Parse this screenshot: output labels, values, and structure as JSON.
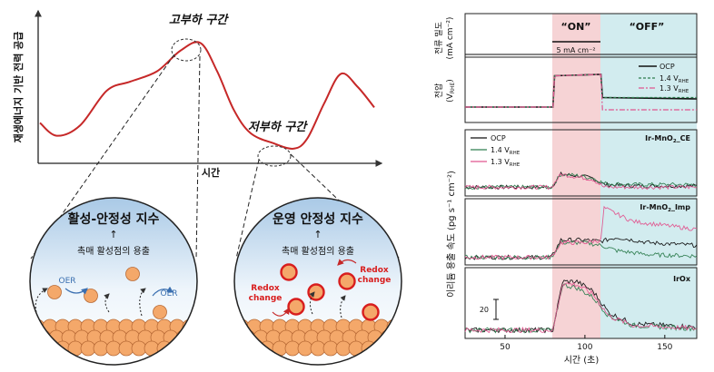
{
  "left_figure": {
    "y_axis_label": "재생에너지 기반 전력 공급",
    "x_axis_label": "시간",
    "high_load_label": "고부하 구간",
    "low_load_label": "저부하 구간",
    "circle_left": {
      "title": "활성-안정성 지수",
      "arrow": "↑",
      "subtitle": "촉매 활성점의 용출",
      "oer_labels": [
        "OER",
        "OER"
      ]
    },
    "circle_right": {
      "title": "운영 안정성 지수",
      "arrow": "↑",
      "subtitle": "촉매 활성점의 용출",
      "redox_labels": [
        "Redox\nchange",
        "Redox\nchange"
      ]
    },
    "colors": {
      "curve": "#c62828",
      "circle_top": "#a9c9e6",
      "particle": "#f4a86a",
      "redox": "#d81e1e"
    }
  },
  "right_figure": {
    "x_axis_label": "시간 (초)",
    "x_ticks": [
      "50",
      "100",
      "150"
    ],
    "on_label": "“ON”",
    "off_label": "“OFF”",
    "current_bar_label": "5 mA cm⁻²",
    "panel_current_ylabel": [
      "전류 밀도",
      "(mA cm⁻²)"
    ],
    "panel_voltage_ylabel": [
      "전압",
      "(V",
      "RHE",
      ")"
    ],
    "dissolution_ylabel": "이리듐 용출 속도 (pg s⁻¹ cm⁻²)",
    "scale_bar_label": "20",
    "voltage_legend": [
      "OCP",
      "1.4 V",
      "1.3 V"
    ],
    "legend_subscript": "RHE",
    "rate_legend": [
      "OCP",
      "1.4 V",
      "1.3 V"
    ],
    "panel_titles": [
      "Ir-MnO",
      "Ir-MnO",
      "IrOx"
    ],
    "panel_title_suffix": [
      "_CE",
      "_Imp",
      ""
    ],
    "panel_title_subscript": "2",
    "colors": {
      "on_region": "#f6d3d5",
      "off_region": "#d2ecef",
      "ocp": "#111111",
      "v14": "#2e7d4f",
      "v13": "#e0568f"
    }
  },
  "chart_data": [
    {
      "type": "line",
      "title": "",
      "xlabel": "시간",
      "ylabel": "재생에너지 기반 전력 공급",
      "series": [
        {
          "x": [
            0,
            0.05,
            0.12,
            0.2,
            0.27,
            0.35,
            0.42,
            0.48,
            0.53,
            0.58,
            0.63,
            0.7,
            0.76,
            0.8,
            0.85,
            0.9,
            0.95,
            1.0
          ],
          "values": [
            0.3,
            0.2,
            0.28,
            0.55,
            0.62,
            0.7,
            0.86,
            0.92,
            0.7,
            0.4,
            0.22,
            0.14,
            0.1,
            0.18,
            0.45,
            0.68,
            0.58,
            0.42
          ]
        }
      ]
    },
    {
      "type": "line",
      "title": "",
      "xlabel": "시간 (초)",
      "ylabel": "전압 (V_RHE)",
      "xlim": [
        25,
        170
      ],
      "series": [
        {
          "name": "OCP",
          "x": [
            25,
            80,
            81,
            110,
            111,
            170
          ],
          "values": [
            0.4,
            0.4,
            1.55,
            1.6,
            0.75,
            0.7
          ]
        },
        {
          "name": "1.4 V_RHE",
          "x": [
            25,
            80,
            81,
            110,
            111,
            170
          ],
          "values": [
            0.4,
            0.4,
            1.55,
            1.6,
            0.75,
            0.75
          ]
        },
        {
          "name": "1.3 V_RHE",
          "x": [
            25,
            80,
            81,
            110,
            111,
            170
          ],
          "values": [
            0.4,
            0.4,
            1.55,
            1.6,
            0.3,
            0.3
          ]
        }
      ]
    },
    {
      "type": "line",
      "title": "Ir-MnO2_CE",
      "xlabel": "시간 (초)",
      "ylabel": "이리듐 용출 속도 (pg s⁻¹ cm⁻²)",
      "xlim": [
        25,
        170
      ],
      "series": [
        {
          "name": "OCP",
          "x": [
            25,
            79,
            85,
            95,
            105,
            112,
            130,
            170
          ],
          "values": [
            4,
            4,
            14,
            13,
            11,
            6,
            5,
            5
          ]
        },
        {
          "name": "1.4 V_RHE",
          "x": [
            25,
            79,
            85,
            95,
            105,
            112,
            130,
            170
          ],
          "values": [
            4,
            4,
            14,
            13,
            11,
            7,
            6,
            6
          ]
        },
        {
          "name": "1.3 V_RHE",
          "x": [
            25,
            79,
            85,
            95,
            105,
            112,
            130,
            170
          ],
          "values": [
            4,
            4,
            14,
            12,
            10,
            4,
            4,
            4
          ]
        }
      ]
    },
    {
      "type": "line",
      "title": "Ir-MnO2_Imp",
      "xlabel": "시간 (초)",
      "ylabel": "이리듐 용출 속도 (pg s⁻¹ cm⁻²)",
      "xlim": [
        25,
        170
      ],
      "series": [
        {
          "name": "OCP",
          "x": [
            25,
            79,
            85,
            100,
            110,
            120,
            140,
            170
          ],
          "values": [
            3,
            3,
            16,
            16,
            15,
            18,
            14,
            12
          ]
        },
        {
          "name": "1.4 V_RHE",
          "x": [
            25,
            79,
            85,
            100,
            110,
            120,
            140,
            170
          ],
          "values": [
            3,
            3,
            14,
            14,
            12,
            8,
            5,
            4
          ]
        },
        {
          "name": "1.3 V_RHE",
          "x": [
            25,
            79,
            85,
            100,
            110,
            112,
            130,
            170
          ],
          "values": [
            3,
            3,
            14,
            14,
            16,
            40,
            30,
            24
          ]
        }
      ]
    },
    {
      "type": "line",
      "title": "IrOx",
      "xlabel": "시간 (초)",
      "ylabel": "이리듐 용출 속도 (pg s⁻¹ cm⁻²)",
      "xlim": [
        25,
        170
      ],
      "series": [
        {
          "name": "OCP",
          "x": [
            25,
            80,
            86,
            95,
            105,
            115,
            130,
            170
          ],
          "values": [
            3,
            3,
            34,
            34,
            28,
            14,
            7,
            5
          ]
        },
        {
          "name": "1.4 V_RHE",
          "x": [
            25,
            80,
            86,
            95,
            105,
            115,
            130,
            170
          ],
          "values": [
            3,
            3,
            32,
            30,
            24,
            12,
            6,
            4
          ]
        },
        {
          "name": "1.3 V_RHE",
          "x": [
            25,
            80,
            86,
            95,
            105,
            115,
            130,
            170
          ],
          "values": [
            3,
            3,
            33,
            32,
            26,
            12,
            6,
            4
          ]
        }
      ]
    }
  ]
}
